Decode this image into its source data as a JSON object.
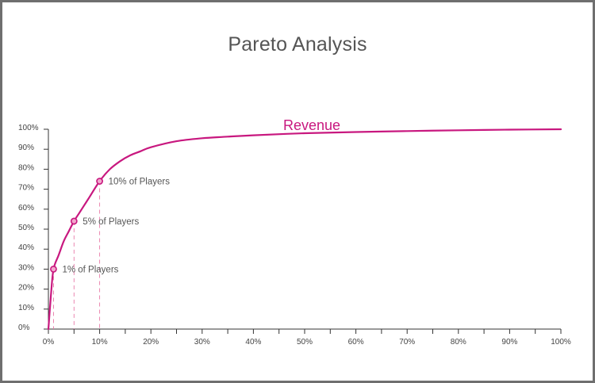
{
  "chart_data": {
    "type": "line",
    "title": "Pareto Analysis",
    "xlabel": "",
    "ylabel": "",
    "xlim": [
      0,
      100
    ],
    "ylim": [
      0,
      100
    ],
    "x_ticks": [
      "0%",
      "10%",
      "20%",
      "30%",
      "40%",
      "50%",
      "60%",
      "70%",
      "80%",
      "90%",
      "100%"
    ],
    "y_ticks": [
      "0%",
      "10%",
      "20%",
      "30%",
      "40%",
      "50%",
      "60%",
      "70%",
      "80%",
      "90%",
      "100%"
    ],
    "grid": false,
    "series": [
      {
        "name": "Revenue",
        "color": "#c8187f",
        "x": [
          0,
          0.5,
          1,
          2,
          3,
          4,
          5,
          6,
          7,
          8,
          10,
          12,
          14,
          16,
          18,
          20,
          25,
          30,
          35,
          40,
          50,
          60,
          70,
          80,
          90,
          100
        ],
        "y": [
          0,
          17,
          30,
          37,
          44,
          49,
          54,
          58,
          62,
          66,
          74,
          80,
          84,
          87,
          89,
          91,
          94,
          95.5,
          96.3,
          97,
          98,
          98.6,
          99.1,
          99.5,
          99.8,
          100
        ]
      }
    ],
    "annotations": [
      {
        "label": "1% of Players",
        "x": 1,
        "y": 30
      },
      {
        "label": "5% of Players",
        "x": 5,
        "y": 54
      },
      {
        "label": "10% of Players",
        "x": 10,
        "y": 74
      }
    ]
  }
}
